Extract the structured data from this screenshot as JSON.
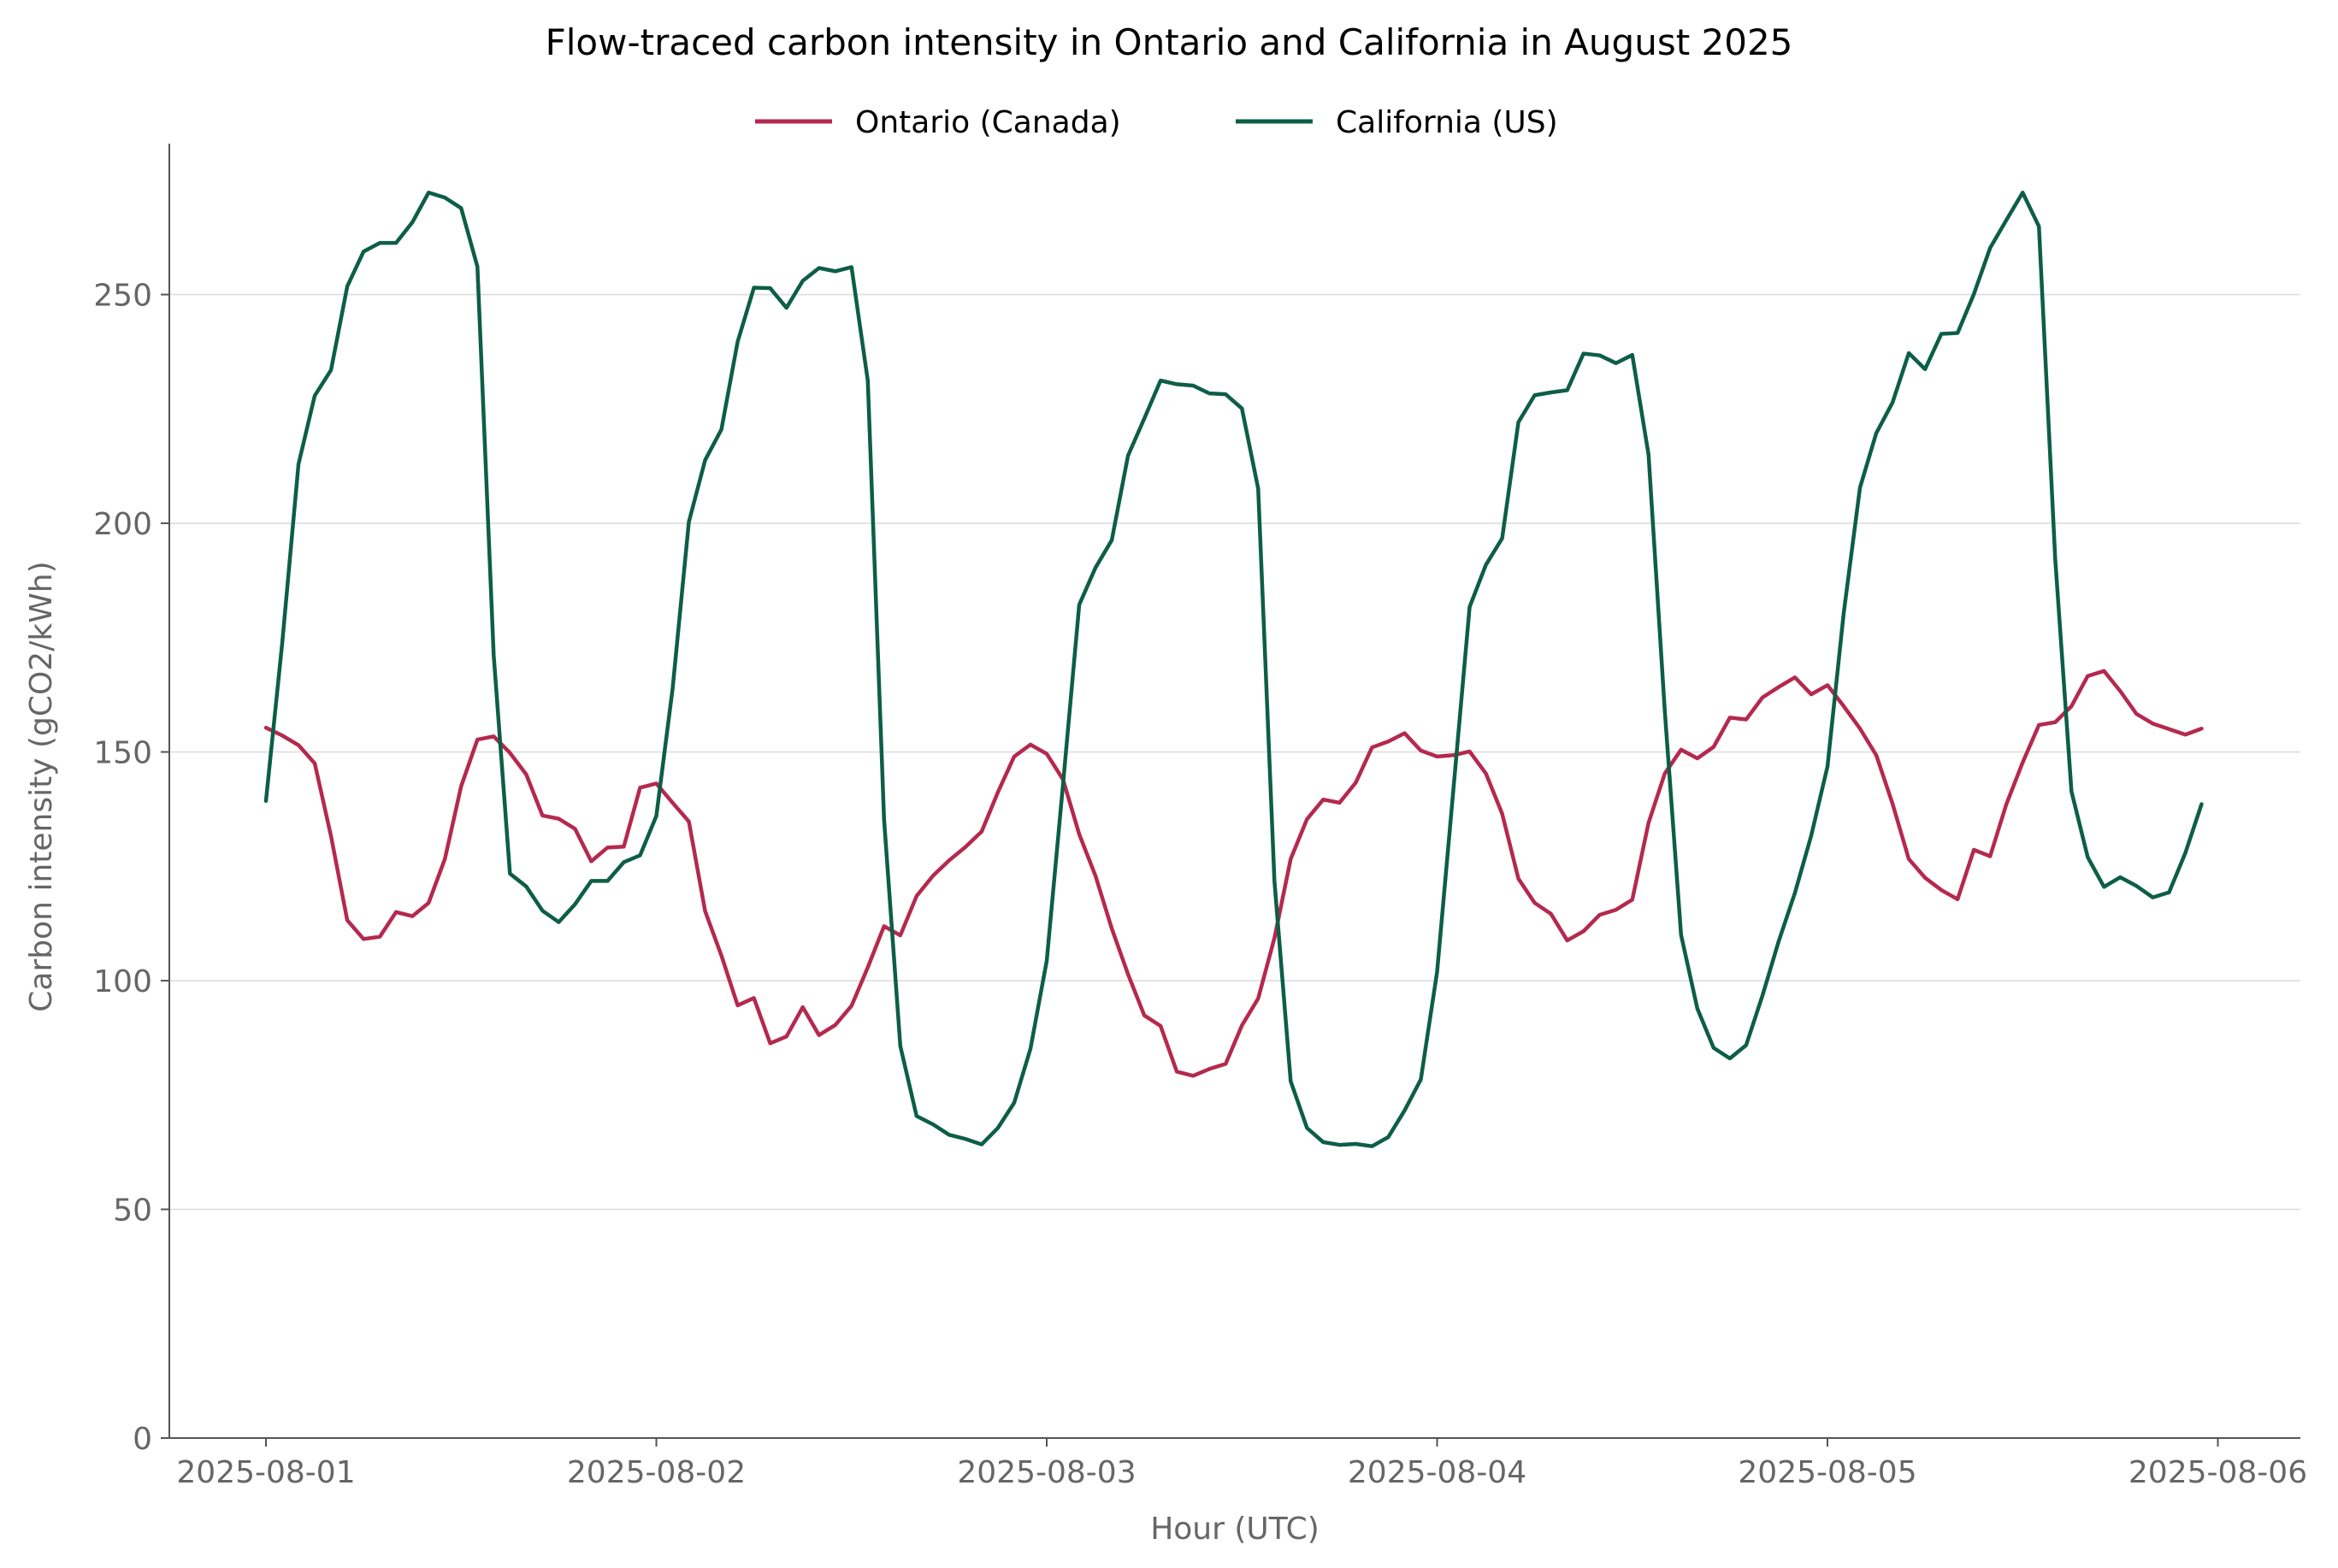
{
  "chart_data": {
    "type": "line",
    "title": "Flow-traced carbon intensity in Ontario and California in August 2025",
    "xlabel": "Hour (UTC)",
    "ylabel": "Carbon intensity (gCO2/kWh)",
    "x_start": "2025-08-01T00:00",
    "x_step_hours": 1,
    "x_ticks": [
      "2025-08-01",
      "2025-08-02",
      "2025-08-03",
      "2025-08-04",
      "2025-08-05",
      "2025-08-06"
    ],
    "ylim": [
      0,
      283
    ],
    "y_ticks": [
      0,
      50,
      100,
      150,
      200,
      250
    ],
    "grid": "horizontal",
    "legend_position": "top-center",
    "series": [
      {
        "name": "Ontario (Canada)",
        "color": "#b5294e",
        "values": [
          155.3,
          153.6,
          151.5,
          147.5,
          131.6,
          113.2,
          109.1,
          109.6,
          115.0,
          114.1,
          117.0,
          126.6,
          142.5,
          152.7,
          153.4,
          149.8,
          145.1,
          136.1,
          135.4,
          133.2,
          126.1,
          129.1,
          129.3,
          142.2,
          143.1,
          138.9,
          134.8,
          115.2,
          105.5,
          94.6,
          96.2,
          86.3,
          87.8,
          94.2,
          88.1,
          90.3,
          94.5,
          102.9,
          111.9,
          109.9,
          118.5,
          122.9,
          126.3,
          129.2,
          132.6,
          141.2,
          149.0,
          151.6,
          149.6,
          144.0,
          132.0,
          122.9,
          111.4,
          101.4,
          92.4,
          90.1,
          80.1,
          79.2,
          80.7,
          81.8,
          90.2,
          96.1,
          109.3,
          126.6,
          135.3,
          139.6,
          138.9,
          143.3,
          151.0,
          152.3,
          154.1,
          150.3,
          149.0,
          149.3,
          150.1,
          145.3,
          136.5,
          122.3,
          117.0,
          114.6,
          108.8,
          110.8,
          114.4,
          115.5,
          117.7,
          134.5,
          145.3,
          150.5,
          148.6,
          151.1,
          157.5,
          157.1,
          161.9,
          164.2,
          166.3,
          162.6,
          164.6,
          160.0,
          155.1,
          149.3,
          138.7,
          126.6,
          122.5,
          119.8,
          117.8,
          128.6,
          127.2,
          138.6,
          147.7,
          155.9,
          156.5,
          160.0,
          166.6,
          167.7,
          163.3,
          158.3,
          156.2,
          155.0,
          153.8,
          155.1
        ]
      },
      {
        "name": "California (US)",
        "color": "#0d5e46",
        "values": [
          139.3,
          173.8,
          212.9,
          227.9,
          233.5,
          251.8,
          259.4,
          261.3,
          261.3,
          265.8,
          272.3,
          271.2,
          268.9,
          256.1,
          171.2,
          123.4,
          120.6,
          115.3,
          112.8,
          116.7,
          121.8,
          121.8,
          125.9,
          127.4,
          136.0,
          163.8,
          200.3,
          213.8,
          220.5,
          239.7,
          251.5,
          251.4,
          247.1,
          253.0,
          255.8,
          255.1,
          256.0,
          231.2,
          135.3,
          85.7,
          70.4,
          68.6,
          66.3,
          65.4,
          64.2,
          67.8,
          73.3,
          85.1,
          104.3,
          142.8,
          182.2,
          190.3,
          196.3,
          214.8,
          222.9,
          231.2,
          230.4,
          230.1,
          228.4,
          228.2,
          225.1,
          207.6,
          121.8,
          78.0,
          67.8,
          64.7,
          64.1,
          64.3,
          63.8,
          65.8,
          71.6,
          78.4,
          101.9,
          141.7,
          181.7,
          190.9,
          196.7,
          222.1,
          228.0,
          228.6,
          229.1,
          237.1,
          236.7,
          235.0,
          236.8,
          215.0,
          158.9,
          110.0,
          93.9,
          85.3,
          83.0,
          85.9,
          96.7,
          108.6,
          119.2,
          131.7,
          146.8,
          180.4,
          207.8,
          219.7,
          226.4,
          237.2,
          233.7,
          241.4,
          241.6,
          250.1,
          260.2,
          266.3,
          272.3,
          264.9,
          192.3,
          141.4,
          127.0,
          120.5,
          122.6,
          120.7,
          118.2,
          119.3,
          127.9,
          138.6
        ]
      }
    ]
  }
}
